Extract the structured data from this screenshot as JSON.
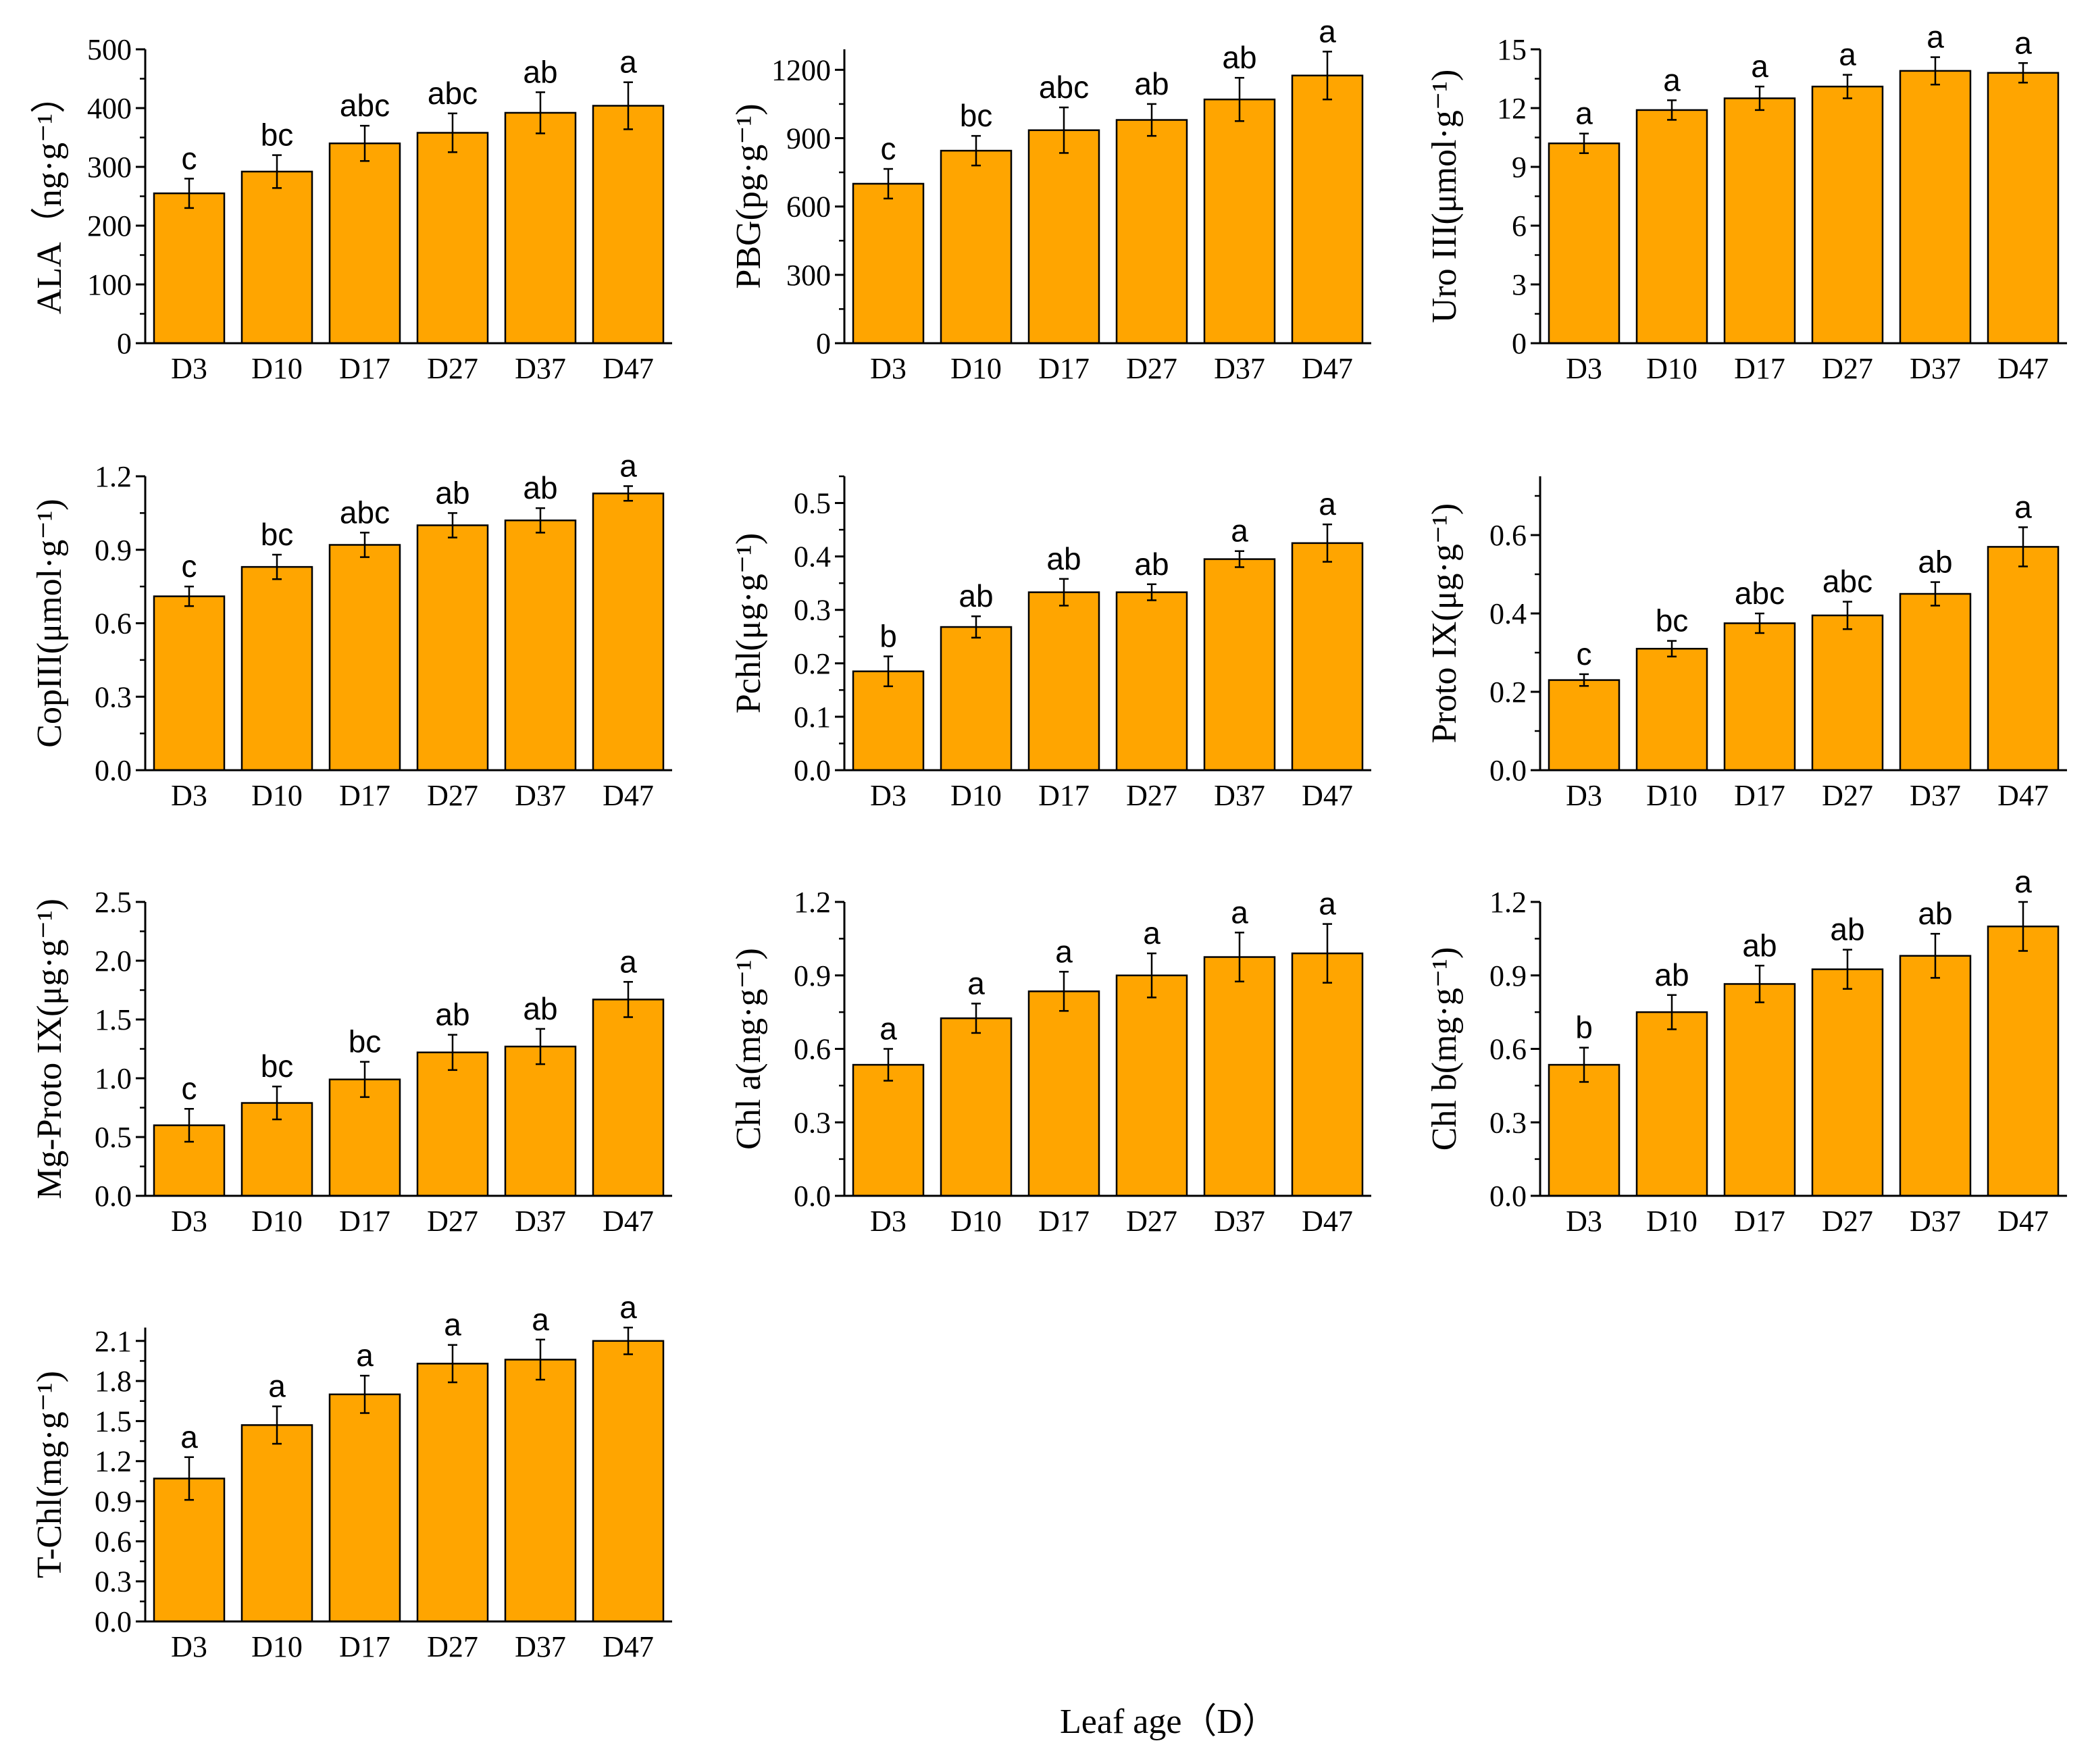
{
  "figure": {
    "x_label": "Leaf age（D）",
    "bar_color": "#FFA500",
    "edge_color": "#000000"
  },
  "chart_data": [
    {
      "type": "bar",
      "ylabel": "ALA（ng·g⁻¹）",
      "categories": [
        "D3",
        "D10",
        "D17",
        "D27",
        "D37",
        "D47"
      ],
      "values": [
        255,
        292,
        340,
        358,
        392,
        404
      ],
      "errors": [
        25,
        28,
        30,
        33,
        35,
        40
      ],
      "letters": [
        "c",
        "bc",
        "abc",
        "abc",
        "ab",
        "a"
      ],
      "ylim": [
        0,
        500
      ],
      "yticks": [
        "0",
        "100",
        "200",
        "300",
        "400",
        "500"
      ]
    },
    {
      "type": "bar",
      "ylabel": "PBG(pg·g⁻¹)",
      "categories": [
        "D3",
        "D10",
        "D17",
        "D27",
        "D37",
        "D47"
      ],
      "values": [
        700,
        845,
        935,
        980,
        1070,
        1175
      ],
      "errors": [
        65,
        65,
        100,
        70,
        95,
        105
      ],
      "letters": [
        "c",
        "bc",
        "abc",
        "ab",
        "ab",
        "a"
      ],
      "ylim": [
        0,
        1290
      ],
      "yticks": [
        "0",
        "300",
        "600",
        "900",
        "1200"
      ]
    },
    {
      "type": "bar",
      "ylabel": "Uro III(μmol·g⁻¹)",
      "categories": [
        "D3",
        "D10",
        "D17",
        "D27",
        "D37",
        "D47"
      ],
      "values": [
        10.2,
        11.9,
        12.5,
        13.1,
        13.9,
        13.8
      ],
      "errors": [
        0.5,
        0.5,
        0.6,
        0.6,
        0.7,
        0.5
      ],
      "letters": [
        "a",
        "a",
        "a",
        "a",
        "a",
        "a"
      ],
      "ylim": [
        0,
        15
      ],
      "yticks": [
        "0",
        "3",
        "6",
        "9",
        "12",
        "15"
      ]
    },
    {
      "type": "bar",
      "ylabel": "CopIII(μmol·g⁻¹)",
      "categories": [
        "D3",
        "D10",
        "D17",
        "D27",
        "D37",
        "D47"
      ],
      "values": [
        0.71,
        0.83,
        0.92,
        1.0,
        1.02,
        1.13
      ],
      "errors": [
        0.04,
        0.05,
        0.05,
        0.05,
        0.05,
        0.03
      ],
      "letters": [
        "c",
        "bc",
        "abc",
        "ab",
        "ab",
        "a"
      ],
      "ylim": [
        0,
        1.2
      ],
      "yticks": [
        "0.0",
        "0.3",
        "0.6",
        "0.9",
        "1.2"
      ]
    },
    {
      "type": "bar",
      "ylabel": "Pchl(μg·g⁻¹)",
      "categories": [
        "D3",
        "D10",
        "D17",
        "D27",
        "D37",
        "D47"
      ],
      "values": [
        0.185,
        0.268,
        0.333,
        0.333,
        0.395,
        0.425
      ],
      "errors": [
        0.028,
        0.02,
        0.025,
        0.015,
        0.015,
        0.035
      ],
      "letters": [
        "b",
        "ab",
        "ab",
        "ab",
        "a",
        "a"
      ],
      "ylim": [
        0,
        0.55
      ],
      "yticks": [
        "0.0",
        "0.1",
        "0.2",
        "0.3",
        "0.4",
        "0.5"
      ]
    },
    {
      "type": "bar",
      "ylabel": "Proto IX(μg·g⁻¹)",
      "categories": [
        "D3",
        "D10",
        "D17",
        "D27",
        "D37",
        "D47"
      ],
      "values": [
        0.23,
        0.31,
        0.375,
        0.395,
        0.45,
        0.57
      ],
      "errors": [
        0.015,
        0.02,
        0.025,
        0.035,
        0.03,
        0.05
      ],
      "letters": [
        "c",
        "bc",
        "abc",
        "abc",
        "ab",
        "a"
      ],
      "ylim": [
        0,
        0.75
      ],
      "yticks": [
        "0.0",
        "0.2",
        "0.4",
        "0.6"
      ]
    },
    {
      "type": "bar",
      "ylabel": "Mg-Proto IX(μg·g⁻¹)",
      "categories": [
        "D3",
        "D10",
        "D17",
        "D27",
        "D37",
        "D47"
      ],
      "values": [
        0.6,
        0.79,
        0.99,
        1.22,
        1.27,
        1.67
      ],
      "errors": [
        0.14,
        0.14,
        0.15,
        0.15,
        0.15,
        0.15
      ],
      "letters": [
        "c",
        "bc",
        "bc",
        "ab",
        "ab",
        "a"
      ],
      "ylim": [
        0,
        2.5
      ],
      "yticks": [
        "0.0",
        "0.5",
        "1.0",
        "1.5",
        "2.0",
        "2.5"
      ]
    },
    {
      "type": "bar",
      "ylabel": "Chl a(mg·g⁻¹)",
      "categories": [
        "D3",
        "D10",
        "D17",
        "D27",
        "D37",
        "D47"
      ],
      "values": [
        0.535,
        0.725,
        0.835,
        0.9,
        0.975,
        0.99
      ],
      "errors": [
        0.065,
        0.06,
        0.08,
        0.09,
        0.1,
        0.12
      ],
      "letters": [
        "a",
        "a",
        "a",
        "a",
        "a",
        "a"
      ],
      "ylim": [
        0,
        1.2
      ],
      "yticks": [
        "0.0",
        "0.3",
        "0.6",
        "0.9",
        "1.2"
      ]
    },
    {
      "type": "bar",
      "ylabel": "Chl b(mg·g⁻¹)",
      "categories": [
        "D3",
        "D10",
        "D17",
        "D27",
        "D37",
        "D47"
      ],
      "values": [
        0.535,
        0.75,
        0.865,
        0.925,
        0.98,
        1.1
      ],
      "errors": [
        0.07,
        0.07,
        0.075,
        0.08,
        0.09,
        0.1
      ],
      "letters": [
        "b",
        "ab",
        "ab",
        "ab",
        "ab",
        "a"
      ],
      "ylim": [
        0,
        1.2
      ],
      "yticks": [
        "0.0",
        "0.3",
        "0.6",
        "0.9",
        "1.2"
      ]
    },
    {
      "type": "bar",
      "ylabel": "T-Chl(mg·g⁻¹)",
      "categories": [
        "D3",
        "D10",
        "D17",
        "D27",
        "D37",
        "D47"
      ],
      "values": [
        1.07,
        1.47,
        1.7,
        1.93,
        1.96,
        2.1
      ],
      "errors": [
        0.16,
        0.14,
        0.14,
        0.14,
        0.15,
        0.1
      ],
      "letters": [
        "a",
        "a",
        "a",
        "a",
        "a",
        "a"
      ],
      "ylim": [
        0,
        2.2
      ],
      "yticks": [
        "0.0",
        "0.3",
        "0.6",
        "0.9",
        "1.2",
        "1.5",
        "1.8",
        "2.1"
      ]
    }
  ]
}
